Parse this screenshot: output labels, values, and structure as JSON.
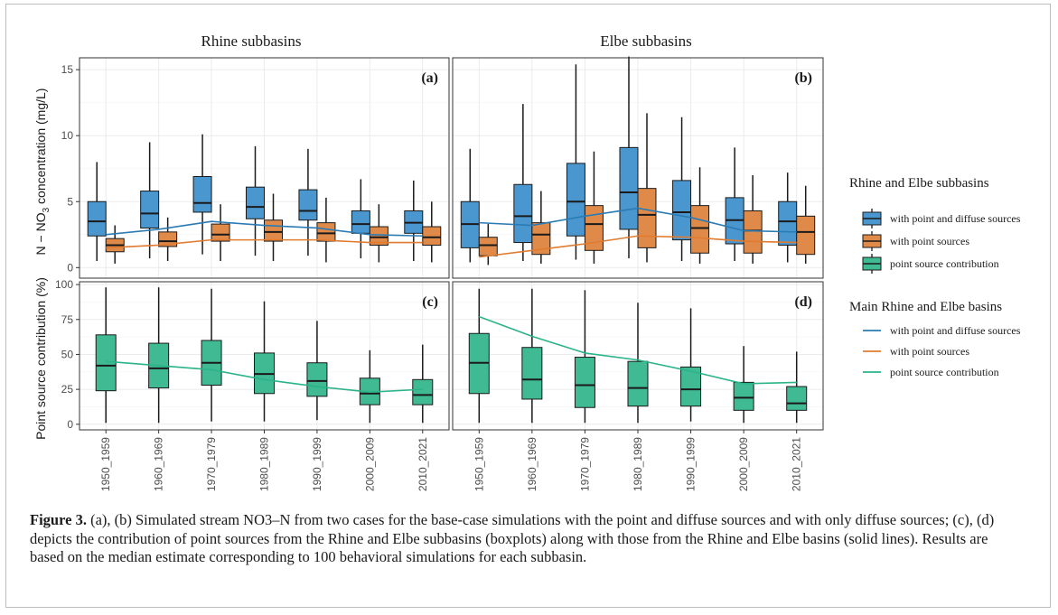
{
  "figure": {
    "caption_label": "Figure 3.",
    "caption_text": "(a), (b) Simulated stream NO3–N from two cases for the base-case simulations with the point and diffuse sources and with only diffuse sources; (c), (d) depicts the contribution of point sources from the Rhine and Elbe subbasins (boxplots) along with those from the Rhine and Elbe basins (solid lines). Results are based on the median estimate corresponding to 100 behavioral simulations for each subbasin."
  },
  "legend": {
    "box_title": "Rhine and Elbe subbasins",
    "line_title": "Main Rhine and Elbe basins",
    "entries": [
      "with point and diffuse sources",
      "with point sources",
      "point source contribution"
    ]
  },
  "colors": {
    "diffuse_box": "#4a97cf",
    "point_box": "#e08a4a",
    "contrib_box": "#3fba93",
    "diffuse_line": "#2a7bb4",
    "point_line": "#e07b30",
    "contrib_line": "#2bb38a"
  },
  "chart_data": {
    "type": "boxplot-faceted",
    "categories": [
      "1950_1959",
      "1960_1969",
      "1970_1979",
      "1980_1989",
      "1990_1999",
      "2000_2009",
      "2010_2021"
    ],
    "facet_titles": [
      "Rhine subbasins",
      "Elbe subbasins"
    ],
    "top_ylabel": "N − NO3 concentration (mg/L)",
    "top_ylabel_main": "N − NO",
    "top_ylabel_sub": "3",
    "top_ylabel_rest": " concentration (mg/L)",
    "bottom_ylabel": "Point source contribution (%)",
    "top_ylim": [
      -0.8,
      15.9
    ],
    "top_yticks": [
      0,
      5,
      10,
      15
    ],
    "bottom_ylim": [
      -4,
      102
    ],
    "bottom_yticks": [
      0,
      25,
      50,
      75,
      100
    ],
    "panels": [
      {
        "label": "(a)",
        "boxes": [
          {
            "name": "with point and diffuse sources",
            "stats": [
              [
                0.5,
                2.4,
                3.5,
                5.0,
                8.0
              ],
              [
                0.7,
                3.0,
                4.1,
                5.8,
                9.5
              ],
              [
                1.0,
                4.2,
                4.9,
                6.9,
                10.1
              ],
              [
                0.9,
                3.7,
                4.6,
                6.1,
                9.2
              ],
              [
                0.9,
                3.6,
                4.3,
                5.9,
                9.0
              ],
              [
                0.7,
                2.6,
                3.3,
                4.3,
                6.7
              ],
              [
                0.5,
                2.6,
                3.4,
                4.3,
                6.6
              ]
            ]
          },
          {
            "name": "with point sources",
            "stats": [
              [
                0.3,
                1.2,
                1.7,
                2.2,
                3.2
              ],
              [
                0.5,
                1.6,
                2.0,
                2.7,
                3.8
              ],
              [
                0.5,
                2.0,
                2.5,
                3.3,
                4.8
              ],
              [
                0.5,
                2.0,
                2.7,
                3.6,
                5.6
              ],
              [
                0.4,
                2.0,
                2.6,
                3.4,
                5.3
              ],
              [
                0.4,
                1.7,
                2.3,
                3.1,
                4.8
              ],
              [
                0.4,
                1.7,
                2.3,
                3.1,
                5.0
              ]
            ]
          }
        ],
        "lines": [
          {
            "name": "with point and diffuse sources",
            "values": [
              2.5,
              2.9,
              3.5,
              3.2,
              3.0,
              2.5,
              2.4
            ]
          },
          {
            "name": "with point sources",
            "values": [
              1.5,
              1.7,
              2.1,
              2.1,
              2.1,
              1.9,
              1.9
            ]
          }
        ]
      },
      {
        "label": "(b)",
        "boxes": [
          {
            "name": "with point and diffuse sources",
            "stats": [
              [
                0.4,
                1.5,
                3.3,
                5.0,
                9.0
              ],
              [
                0.5,
                1.9,
                3.9,
                6.3,
                12.4
              ],
              [
                0.6,
                2.4,
                5.0,
                7.9,
                15.4
              ],
              [
                0.7,
                2.9,
                5.7,
                9.1,
                16.0
              ],
              [
                0.5,
                2.1,
                4.2,
                6.6,
                11.4
              ],
              [
                0.5,
                1.8,
                3.6,
                5.3,
                9.1
              ],
              [
                0.4,
                1.7,
                3.5,
                5.0,
                7.2
              ]
            ]
          },
          {
            "name": "with point sources",
            "stats": [
              [
                0.2,
                0.9,
                1.7,
                2.3,
                3.3
              ],
              [
                0.3,
                1.0,
                2.5,
                3.4,
                5.8
              ],
              [
                0.3,
                1.3,
                3.3,
                4.7,
                8.8
              ],
              [
                0.4,
                1.5,
                4.0,
                6.0,
                11.7
              ],
              [
                0.3,
                1.1,
                3.0,
                4.7,
                7.6
              ],
              [
                0.3,
                1.1,
                2.8,
                4.3,
                7.0
              ],
              [
                0.3,
                1.0,
                2.7,
                3.9,
                6.2
              ]
            ]
          }
        ],
        "lines": [
          {
            "name": "with point and diffuse sources",
            "values": [
              3.4,
              3.2,
              3.9,
              4.5,
              3.8,
              2.8,
              2.7
            ]
          },
          {
            "name": "with point sources",
            "values": [
              0.8,
              1.3,
              1.8,
              2.4,
              2.3,
              2.0,
              1.9
            ]
          }
        ]
      },
      {
        "label": "(c)",
        "boxes": [
          {
            "name": "point source contribution",
            "stats": [
              [
                1,
                24,
                42,
                64,
                98
              ],
              [
                1,
                26,
                40,
                58,
                98
              ],
              [
                2,
                28,
                44,
                60,
                97
              ],
              [
                2,
                22,
                36,
                51,
                88
              ],
              [
                3,
                20,
                31,
                44,
                74
              ],
              [
                1,
                14,
                22,
                33,
                53
              ],
              [
                1,
                14,
                21,
                32,
                57
              ]
            ]
          }
        ],
        "lines": [
          {
            "name": "point source contribution",
            "values": [
              45,
              42,
              39,
              32,
              27,
              23,
              25
            ]
          }
        ]
      },
      {
        "label": "(d)",
        "boxes": [
          {
            "name": "point source contribution",
            "stats": [
              [
                1,
                22,
                44,
                65,
                97
              ],
              [
                1,
                18,
                32,
                55,
                97
              ],
              [
                1,
                12,
                28,
                48,
                96
              ],
              [
                1,
                13,
                26,
                45,
                87
              ],
              [
                2,
                13,
                25,
                41,
                83
              ],
              [
                1,
                10,
                19,
                30,
                56
              ],
              [
                1,
                10,
                15,
                27,
                52
              ]
            ]
          }
        ],
        "lines": [
          {
            "name": "point source contribution",
            "values": [
              77,
              63,
              51,
              46,
              38,
              29,
              30
            ]
          }
        ]
      }
    ]
  }
}
